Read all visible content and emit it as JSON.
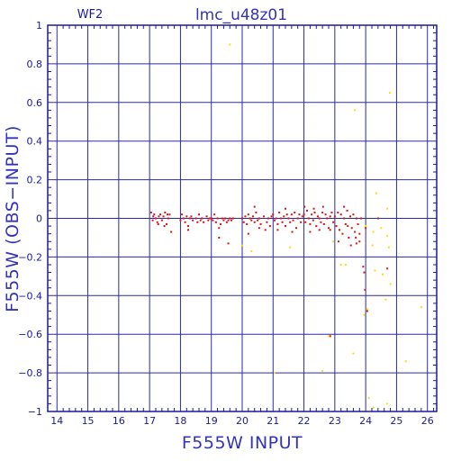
{
  "chart_data": {
    "type": "scatter",
    "title": "lmc_u48z01",
    "panel_label": "WF2",
    "xlabel": "F555W INPUT",
    "ylabel": "F555W (OBS−INPUT)",
    "xlim": [
      13.7,
      26.3
    ],
    "ylim": [
      -1,
      1
    ],
    "x_ticks": [
      14,
      15,
      16,
      17,
      18,
      19,
      20,
      21,
      22,
      23,
      24,
      25,
      26
    ],
    "y_ticks": [
      -1,
      -0.8,
      -0.6,
      -0.4,
      -0.2,
      0,
      0.2,
      0.4,
      0.6,
      0.8,
      1
    ],
    "y_tick_labels": [
      "−1",
      "−0.8",
      "−0.6",
      "−0.4",
      "−0.2",
      "0",
      "0.2",
      "0.4",
      "0.6",
      "0.8",
      "1"
    ],
    "grid": true,
    "colors": {
      "axes": "#1a1a99",
      "grid": "#2a2aa8",
      "labels": "#3333bb",
      "matched": "#dd1111",
      "unmatched": "#f2e400"
    },
    "series": [
      {
        "color": "#dd1111",
        "points": [
          [
            17.05,
            0.03
          ],
          [
            17.1,
            -0.01
          ],
          [
            17.15,
            0.02
          ],
          [
            17.2,
            0.0
          ],
          [
            17.25,
            -0.02
          ],
          [
            17.3,
            0.01
          ],
          [
            17.35,
            0.02
          ],
          [
            17.4,
            -0.01
          ],
          [
            17.45,
            0.01
          ],
          [
            17.5,
            0.03
          ],
          [
            17.55,
            -0.03
          ],
          [
            17.6,
            0.0
          ],
          [
            17.65,
            0.02
          ],
          [
            17.7,
            -0.07
          ],
          [
            17.12,
            0.01
          ],
          [
            17.28,
            -0.03
          ],
          [
            17.48,
            -0.04
          ],
          [
            17.58,
            0.02
          ],
          [
            18.0,
            -0.01
          ],
          [
            18.05,
            0.02
          ],
          [
            18.1,
            0.0
          ],
          [
            18.15,
            -0.02
          ],
          [
            18.2,
            0.01
          ],
          [
            18.25,
            -0.04
          ],
          [
            18.3,
            0.0
          ],
          [
            18.35,
            0.01
          ],
          [
            18.4,
            -0.01
          ],
          [
            18.5,
            0.0
          ],
          [
            18.6,
            0.02
          ],
          [
            18.65,
            -0.01
          ],
          [
            18.7,
            0.0
          ],
          [
            18.75,
            -0.02
          ],
          [
            18.85,
            0.01
          ],
          [
            18.9,
            -0.01
          ],
          [
            18.95,
            0.0
          ],
          [
            18.25,
            -0.06
          ],
          [
            18.55,
            -0.02
          ],
          [
            19.0,
            0.0
          ],
          [
            19.05,
            -0.01
          ],
          [
            19.1,
            0.02
          ],
          [
            19.15,
            -0.02
          ],
          [
            19.2,
            0.0
          ],
          [
            19.25,
            -0.05
          ],
          [
            19.3,
            -0.03
          ],
          [
            19.35,
            0.0
          ],
          [
            19.4,
            -0.01
          ],
          [
            19.45,
            0.0
          ],
          [
            19.5,
            -0.02
          ],
          [
            19.55,
            -0.01
          ],
          [
            19.6,
            0.0
          ],
          [
            19.65,
            -0.01
          ],
          [
            19.7,
            0.0
          ],
          [
            19.25,
            -0.1
          ],
          [
            19.55,
            -0.13
          ],
          [
            20.0,
            0.0
          ],
          [
            20.05,
            -0.02
          ],
          [
            20.1,
            0.01
          ],
          [
            20.15,
            -0.03
          ],
          [
            20.2,
            0.02
          ],
          [
            20.25,
            0.0
          ],
          [
            20.3,
            -0.01
          ],
          [
            20.35,
            0.01
          ],
          [
            20.4,
            -0.02
          ],
          [
            20.45,
            0.03
          ],
          [
            20.5,
            -0.01
          ],
          [
            20.55,
            0.0
          ],
          [
            20.6,
            -0.03
          ],
          [
            20.7,
            0.01
          ],
          [
            20.8,
            -0.02
          ],
          [
            20.85,
            0.0
          ],
          [
            20.9,
            -0.04
          ],
          [
            20.95,
            0.01
          ],
          [
            20.2,
            -0.08
          ],
          [
            20.55,
            -0.05
          ],
          [
            20.75,
            -0.06
          ],
          [
            20.4,
            0.06
          ],
          [
            21.0,
            0.02
          ],
          [
            21.05,
            -0.01
          ],
          [
            21.1,
            0.0
          ],
          [
            21.15,
            -0.03
          ],
          [
            21.2,
            0.03
          ],
          [
            21.25,
            0.0
          ],
          [
            21.3,
            -0.02
          ],
          [
            21.35,
            0.01
          ],
          [
            21.4,
            -0.04
          ],
          [
            21.45,
            0.02
          ],
          [
            21.5,
            0.0
          ],
          [
            21.55,
            -0.02
          ],
          [
            21.6,
            0.02
          ],
          [
            21.65,
            -0.01
          ],
          [
            21.7,
            0.03
          ],
          [
            21.75,
            -0.05
          ],
          [
            21.8,
            0.0
          ],
          [
            21.85,
            0.02
          ],
          [
            21.9,
            -0.02
          ],
          [
            21.95,
            0.01
          ],
          [
            21.15,
            -0.06
          ],
          [
            21.4,
            0.05
          ],
          [
            21.62,
            -0.07
          ],
          [
            22.0,
            0.02
          ],
          [
            22.05,
            -0.02
          ],
          [
            22.1,
            0.04
          ],
          [
            22.15,
            0.0
          ],
          [
            22.2,
            -0.03
          ],
          [
            22.25,
            0.02
          ],
          [
            22.3,
            -0.01
          ],
          [
            22.35,
            0.03
          ],
          [
            22.4,
            -0.04
          ],
          [
            22.45,
            0.01
          ],
          [
            22.5,
            0.0
          ],
          [
            22.55,
            -0.02
          ],
          [
            22.6,
            0.03
          ],
          [
            22.65,
            -0.03
          ],
          [
            22.7,
            0.02
          ],
          [
            22.75,
            0.0
          ],
          [
            22.8,
            -0.05
          ],
          [
            22.85,
            0.01
          ],
          [
            22.9,
            0.03
          ],
          [
            22.95,
            -0.02
          ],
          [
            22.02,
            0.06
          ],
          [
            22.32,
            0.05
          ],
          [
            22.62,
            0.06
          ],
          [
            22.2,
            -0.07
          ],
          [
            22.5,
            -0.06
          ],
          [
            22.85,
            -0.06
          ],
          [
            23.0,
            0.01
          ],
          [
            23.05,
            -0.04
          ],
          [
            23.1,
            0.03
          ],
          [
            23.15,
            -0.06
          ],
          [
            23.2,
            0.02
          ],
          [
            23.25,
            -0.08
          ],
          [
            23.3,
            0.0
          ],
          [
            23.35,
            -0.03
          ],
          [
            23.4,
            0.04
          ],
          [
            23.45,
            -0.1
          ],
          [
            23.5,
            0.01
          ],
          [
            23.55,
            -0.05
          ],
          [
            23.6,
            0.02
          ],
          [
            23.65,
            -0.07
          ],
          [
            23.7,
            0.0
          ],
          [
            23.75,
            -0.03
          ],
          [
            23.8,
            -0.12
          ],
          [
            23.85,
            0.0
          ],
          [
            23.12,
            -0.12
          ],
          [
            23.3,
            0.06
          ],
          [
            23.52,
            -0.14
          ],
          [
            23.68,
            -0.1
          ],
          [
            23.42,
            -0.04
          ],
          [
            23.7,
            -0.13
          ],
          [
            23.8,
            -0.08
          ],
          [
            23.95,
            -0.28
          ],
          [
            23.98,
            -0.37
          ],
          [
            24.05,
            -0.48
          ],
          [
            24.4,
            0.0
          ],
          [
            24.0,
            -0.05
          ],
          [
            23.92,
            -0.25
          ],
          [
            22.85,
            -0.61
          ],
          [
            24.7,
            -0.26
          ]
        ]
      },
      {
        "color": "#f2e400",
        "points": [
          [
            19.6,
            0.9
          ],
          [
            23.65,
            0.56
          ],
          [
            24.78,
            0.65
          ],
          [
            24.35,
            0.13
          ],
          [
            24.7,
            0.05
          ],
          [
            24.25,
            -0.07
          ],
          [
            24.7,
            -0.09
          ],
          [
            24.22,
            -0.14
          ],
          [
            24.75,
            -0.15
          ],
          [
            24.3,
            -0.27
          ],
          [
            24.55,
            -0.29
          ],
          [
            24.8,
            -0.34
          ],
          [
            24.65,
            -0.42
          ],
          [
            24.05,
            -0.47
          ],
          [
            23.2,
            -0.24
          ],
          [
            23.35,
            -0.24
          ],
          [
            23.95,
            -0.5
          ],
          [
            25.8,
            -0.46
          ],
          [
            23.6,
            -0.7
          ],
          [
            22.8,
            -0.61
          ],
          [
            22.6,
            -0.79
          ],
          [
            21.05,
            -0.8
          ],
          [
            24.1,
            -0.93
          ],
          [
            24.7,
            -0.96
          ],
          [
            24.25,
            -0.98
          ],
          [
            25.3,
            -0.74
          ],
          [
            20.3,
            -0.17
          ],
          [
            21.55,
            -0.15
          ],
          [
            20.0,
            -0.14
          ],
          [
            24.5,
            -0.05
          ],
          [
            24.0,
            -0.04
          ],
          [
            22.95,
            -0.12
          ]
        ]
      }
    ]
  }
}
